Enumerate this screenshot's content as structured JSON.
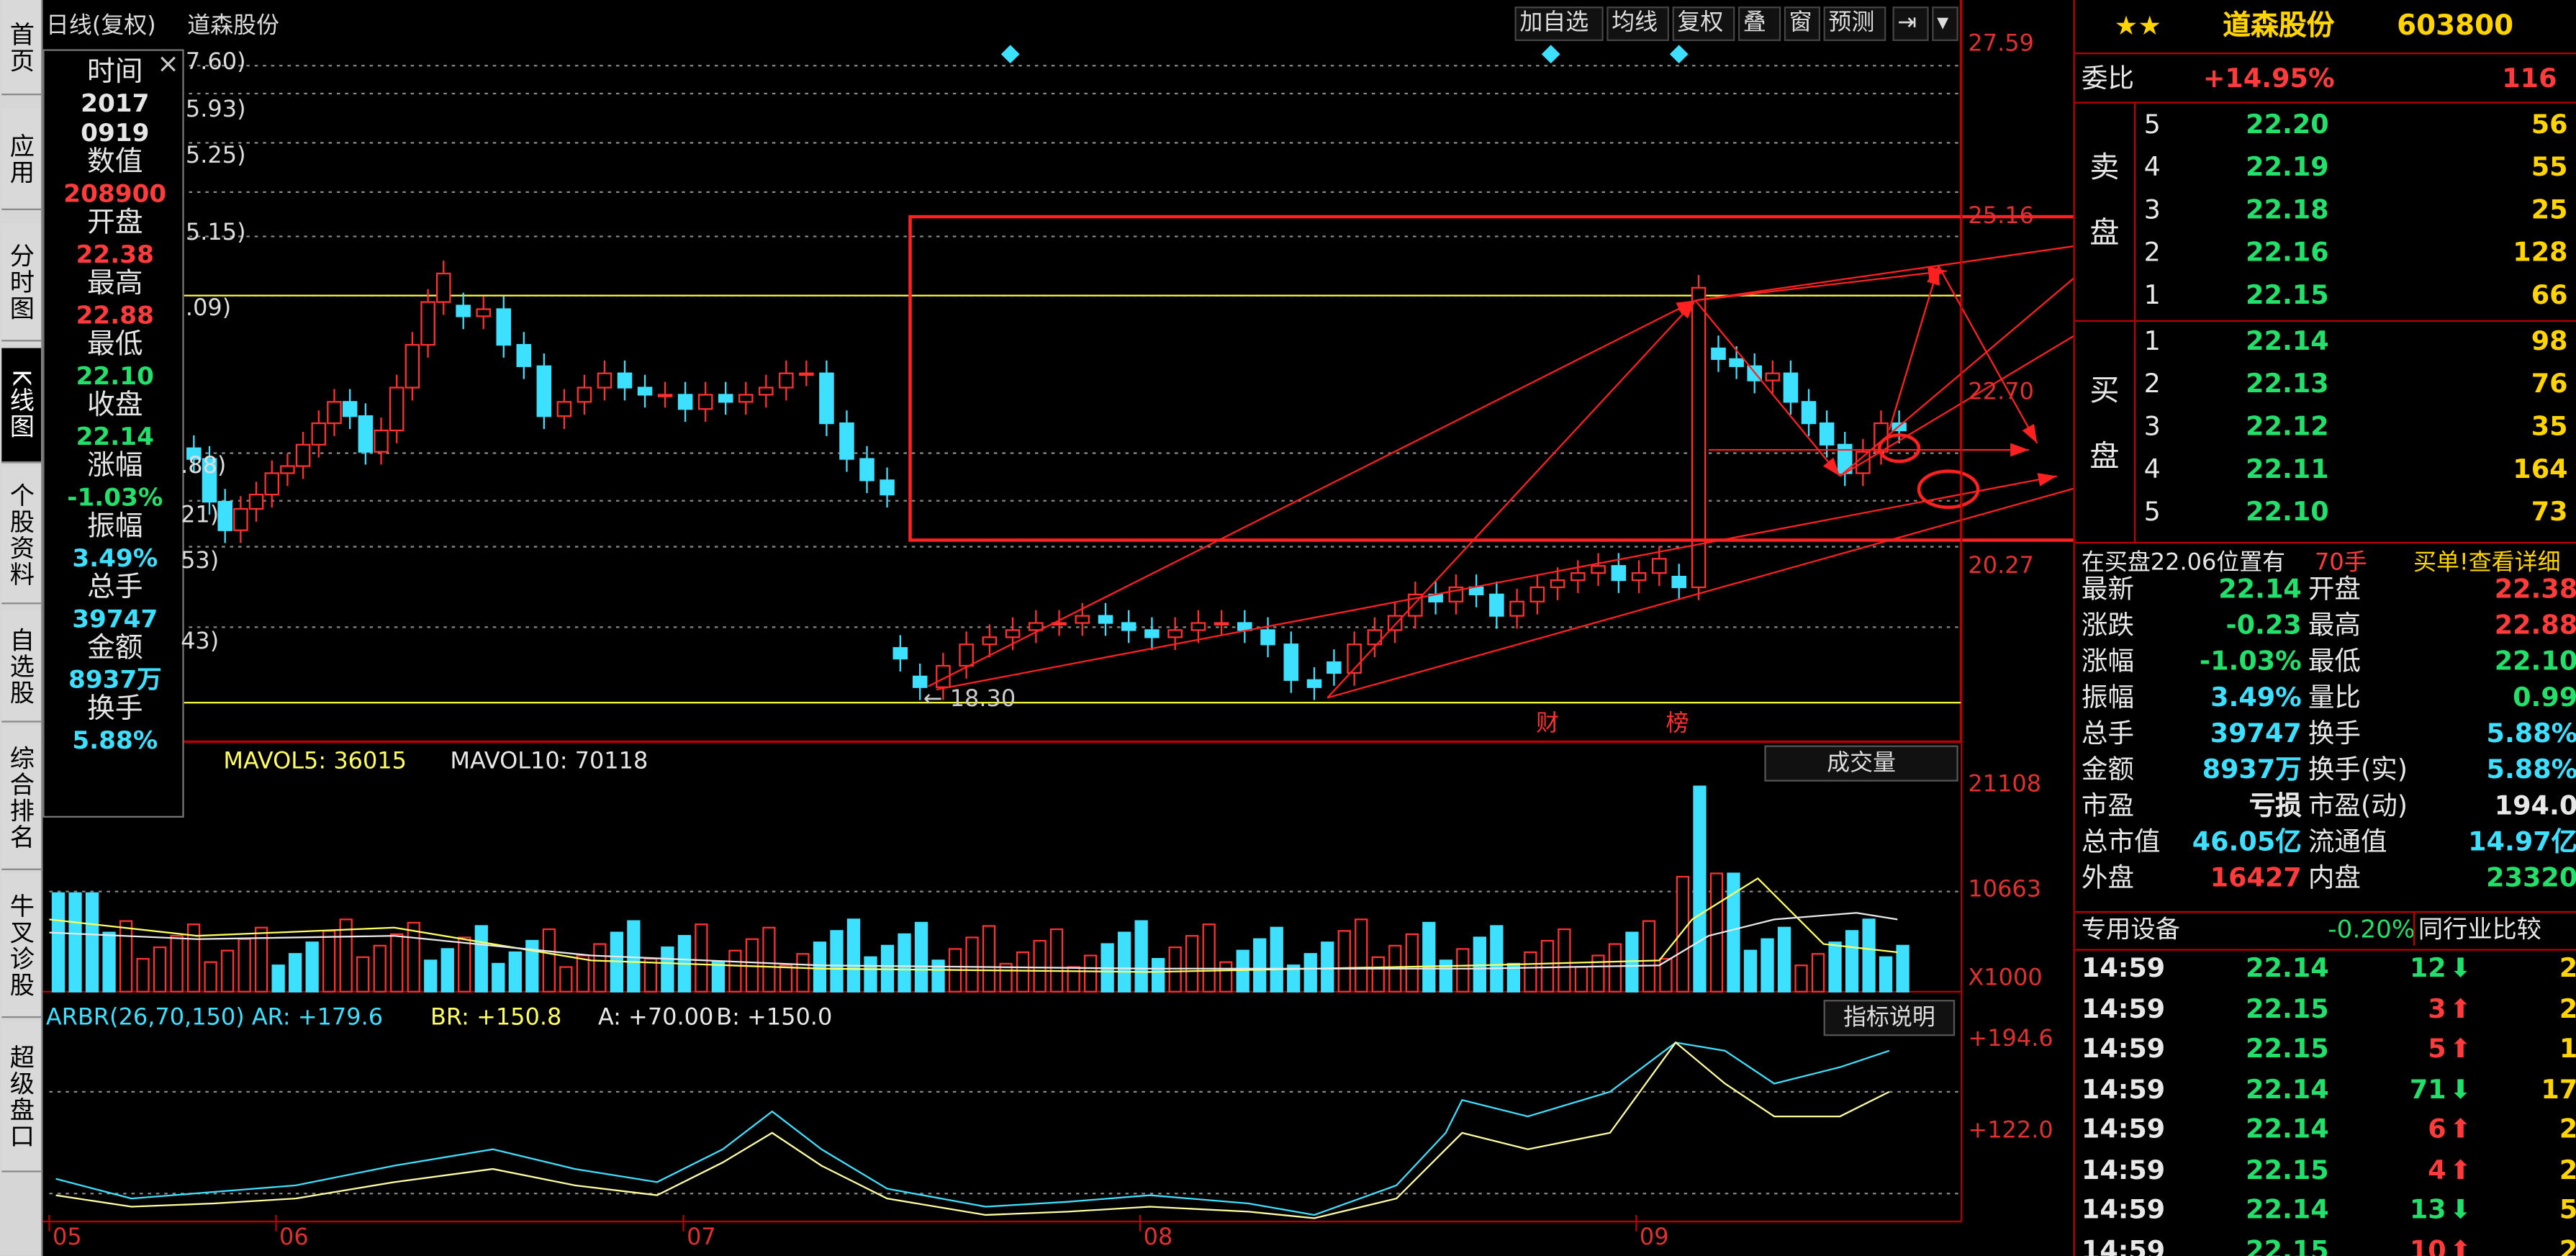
{
  "header": {
    "title": "日线(复权)",
    "stock": "道森股份"
  },
  "toolbar": {
    "buttons": [
      "加自选",
      "均线",
      "复权",
      "叠",
      "窗",
      "预测"
    ]
  },
  "left_tabs": [
    "首页",
    "应用",
    "分时图",
    "K线图",
    "个股资料",
    "自选股",
    "综合排名",
    "牛叉诊股",
    "超级盘口"
  ],
  "price_axis": [
    "27.59",
    "25.16",
    "22.70",
    "20.27"
  ],
  "partial_axis": [
    "7.60)",
    "5.93)",
    "5.25)",
    "5.15)",
    ".09)",
    ".88)",
    "21)",
    "53)",
    "43)"
  ],
  "low_label": "← 18.30",
  "event_markers": [
    "财",
    "榜"
  ],
  "data_window": {
    "rows": [
      {
        "label": "时间",
        "value": "2017",
        "value2": "0919",
        "color": "#e6e6e6"
      },
      {
        "label": "数值",
        "value": "208900",
        "color": "#ff3b3b"
      },
      {
        "label": "开盘",
        "value": "22.38",
        "color": "#ff3b3b"
      },
      {
        "label": "最高",
        "value": "22.88",
        "color": "#ff3b3b"
      },
      {
        "label": "最低",
        "value": "22.10",
        "color": "#22e06a"
      },
      {
        "label": "收盘",
        "value": "22.14",
        "color": "#22e06a"
      },
      {
        "label": "涨幅",
        "value": "-1.03%",
        "color": "#22e06a"
      },
      {
        "label": "振幅",
        "value": "3.49%",
        "color": "#3ee0ff"
      },
      {
        "label": "总手",
        "value": "39747",
        "color": "#3ee0ff"
      },
      {
        "label": "金额",
        "value": "8937万",
        "color": "#3ee0ff"
      },
      {
        "label": "换手",
        "value": "5.88%",
        "color": "#3ee0ff"
      }
    ],
    "close_symbol": "×"
  },
  "volume_panel": {
    "legend": "MAVOL5: 36015",
    "legend2": "MAVOL10: 70118",
    "selector": "成交量",
    "axis": [
      "21108",
      "10663",
      "X1000"
    ]
  },
  "indicator_panel": {
    "legend": "ARBR(26,70,150) AR: +179.6",
    "br": "BR: +150.8",
    "a": "A: +70.00",
    "b": "B: +150.0",
    "button": "指标说明",
    "axis": [
      "+194.6",
      "+122.0"
    ]
  },
  "date_axis": [
    "05",
    "06",
    "07",
    "08",
    "09"
  ],
  "right_panel": {
    "stars": "★★",
    "name": "道森股份",
    "code": "603800",
    "weibi_label": "委比",
    "weibi": "+14.95%",
    "weicha": "116",
    "sell_label": "卖盘",
    "buy_label": "买盘",
    "sell": [
      {
        "n": "5",
        "p": "22.20",
        "v": "56"
      },
      {
        "n": "4",
        "p": "22.19",
        "v": "55"
      },
      {
        "n": "3",
        "p": "22.18",
        "v": "25"
      },
      {
        "n": "2",
        "p": "22.16",
        "v": "128"
      },
      {
        "n": "1",
        "p": "22.15",
        "v": "66"
      }
    ],
    "buy": [
      {
        "n": "1",
        "p": "22.14",
        "v": "98"
      },
      {
        "n": "2",
        "p": "22.13",
        "v": "76"
      },
      {
        "n": "3",
        "p": "22.12",
        "v": "35"
      },
      {
        "n": "4",
        "p": "22.11",
        "v": "164"
      },
      {
        "n": "5",
        "p": "22.10",
        "v": "73"
      }
    ],
    "notice": "在买盘22.06位置有",
    "notice_qty": "70手",
    "notice_link": "买单!查看详细",
    "quote": [
      {
        "l": "最新",
        "v": "22.14",
        "vc": "green",
        "l2": "开盘",
        "v2": "22.38",
        "v2c": "red"
      },
      {
        "l": "涨跌",
        "v": "-0.23",
        "vc": "green",
        "l2": "最高",
        "v2": "22.88",
        "v2c": "red"
      },
      {
        "l": "涨幅",
        "v": "-1.03%",
        "vc": "green",
        "l2": "最低",
        "v2": "22.10",
        "v2c": "green"
      },
      {
        "l": "振幅",
        "v": "3.49%",
        "vc": "cyan",
        "l2": "量比",
        "v2": "0.99",
        "v2c": "green"
      },
      {
        "l": "总手",
        "v": "39747",
        "vc": "cyan",
        "l2": "换手",
        "v2": "5.88%",
        "v2c": "cyan"
      },
      {
        "l": "金额",
        "v": "8937万",
        "vc": "cyan",
        "l2": "换手(实)",
        "v2": "5.88%",
        "v2c": "cyan"
      },
      {
        "l": "市盈",
        "v": "亏损",
        "vc": "white",
        "l2": "市盈(动)",
        "v2": "194.0",
        "v2c": "white"
      },
      {
        "l": "总市值",
        "v": "46.05亿",
        "vc": "cyan",
        "l2": "流通值",
        "v2": "14.97亿",
        "v2c": "cyan"
      },
      {
        "l": "外盘",
        "v": "16427",
        "vc": "red",
        "l2": "内盘",
        "v2": "23320",
        "v2c": "green"
      }
    ],
    "industry": "专用设备",
    "industry_pct": "-0.20%",
    "compare": "同行业比较",
    "ticks": [
      {
        "t": "14:59",
        "p": "22.14",
        "pc": "green",
        "v": "12",
        "dir": "down",
        "x": "2"
      },
      {
        "t": "14:59",
        "p": "22.15",
        "pc": "green",
        "v": "3",
        "dir": "up",
        "x": "2"
      },
      {
        "t": "14:59",
        "p": "22.15",
        "pc": "green",
        "v": "5",
        "dir": "up",
        "x": "1"
      },
      {
        "t": "14:59",
        "p": "22.14",
        "pc": "green",
        "v": "71",
        "dir": "down",
        "x": "17"
      },
      {
        "t": "14:59",
        "p": "22.14",
        "pc": "green",
        "v": "6",
        "dir": "up",
        "x": "2"
      },
      {
        "t": "14:59",
        "p": "22.15",
        "pc": "green",
        "v": "4",
        "dir": "up",
        "x": "2"
      },
      {
        "t": "14:59",
        "p": "22.14",
        "pc": "green",
        "v": "13",
        "dir": "down",
        "x": "5"
      },
      {
        "t": "14:59",
        "p": "22.15",
        "pc": "green",
        "v": "10",
        "dir": "up",
        "x": "2"
      }
    ]
  }
}
